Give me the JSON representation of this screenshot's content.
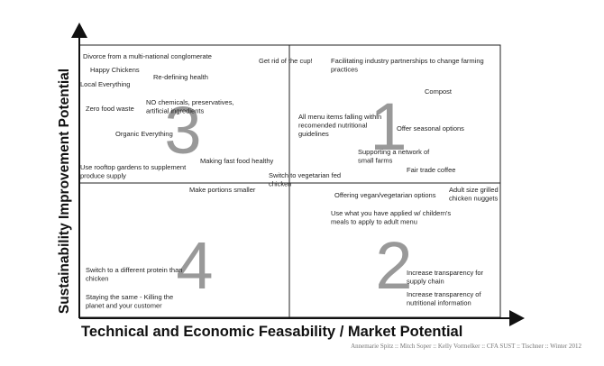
{
  "axes": {
    "x_label": "Technical and Economic Feasability / Market Potential",
    "y_label": "Sustainability Improvement Potential"
  },
  "quadrants": [
    "1",
    "2",
    "3",
    "4"
  ],
  "items": [
    [
      "Divorce from a multi-national conglomerate"
    ],
    [
      "Happy Chickens"
    ],
    [
      "Re-defining health"
    ],
    [
      "Local Everything"
    ],
    [
      "Zero food waste"
    ],
    [
      "NO chemicals, preservatives,",
      "artificial ingredients"
    ],
    [
      "Organic Everything"
    ],
    [
      "Use rooftop gardens to supplement",
      "produce supply"
    ],
    [
      "Making fast food healthy"
    ],
    [
      "Get rid of the cup!"
    ],
    [
      "Facilitating industry partnerships to change farming",
      "practices"
    ],
    [
      "Compost"
    ],
    [
      "All menu items falling within",
      "recomended nutritional",
      "guidelines"
    ],
    [
      "Offer seasonal options"
    ],
    [
      "Supporting a network of",
      "small farms"
    ],
    [
      "Fair trade coffee"
    ],
    [
      "Switch to vegetarian fed",
      "chicken"
    ],
    [
      "Make portions smaller"
    ],
    [
      "Offering vegan/vegetarian options"
    ],
    [
      "Adult size grilled",
      "chicken nuggets"
    ],
    [
      "Use what you have applied w/ childern's",
      "meals to apply to adult menu"
    ],
    [
      "Switch to a different protein than",
      "chicken"
    ],
    [
      "Staying the same - Killing the",
      "planet and your customer"
    ],
    [
      "Increase transparency for",
      "supply chain"
    ],
    [
      "Increase transparency of",
      "nutritional information"
    ]
  ],
  "footer": "Annemarie Spitz :: Mitch Soper :: Kelly Vormelker :: CFA SUST :: Tischner :: Winter 2012"
}
